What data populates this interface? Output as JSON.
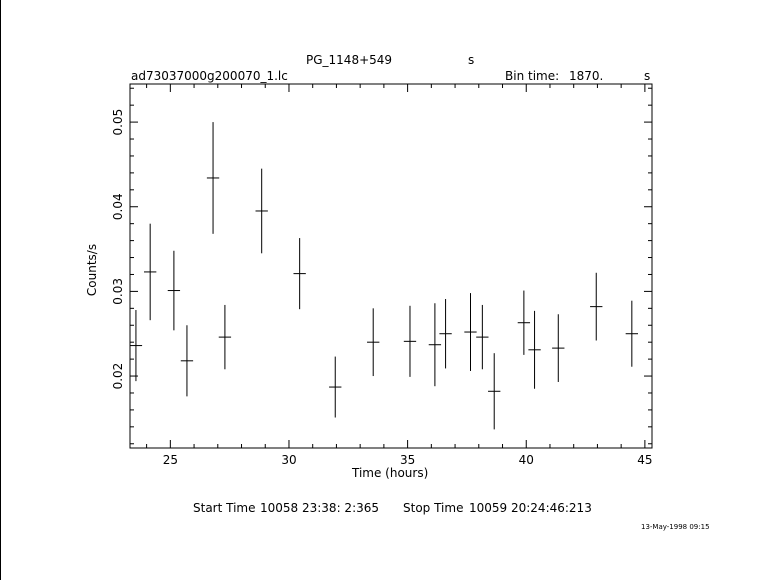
{
  "chart_data": {
    "type": "scatter",
    "title": "PG_1148+549",
    "title_suffix": "s",
    "filename": "ad73037000g200070_1.lc",
    "bin_time_label": "Bin time:",
    "bin_time_value": "1870.",
    "bin_time_unit": "s",
    "xlabel": "Time (hours)",
    "ylabel": "Counts/s",
    "xlim": [
      23.3,
      45.3
    ],
    "ylim": [
      0.0115,
      0.0545
    ],
    "x_ticks": [
      "25",
      "30",
      "35",
      "40",
      "45"
    ],
    "y_ticks": [
      "0.02",
      "0.03",
      "0.04",
      "0.05"
    ],
    "footer": {
      "start_label": "Start Time",
      "start_value": "10058 23:38: 2:365",
      "stop_label": "Stop Time",
      "stop_value": "10059 20:24:46:213"
    },
    "timestamp": "13-May-1998 09:15",
    "points": [
      {
        "x": 23.55,
        "y": 0.0236,
        "xerr": 0.26,
        "yerr": 0.0042
      },
      {
        "x": 24.15,
        "y": 0.0323,
        "xerr": 0.26,
        "yerr": 0.0057
      },
      {
        "x": 25.15,
        "y": 0.0301,
        "xerr": 0.26,
        "yerr": 0.0047
      },
      {
        "x": 25.7,
        "y": 0.0218,
        "xerr": 0.26,
        "yerr": 0.0042
      },
      {
        "x": 26.8,
        "y": 0.0434,
        "xerr": 0.26,
        "yerr": 0.0066
      },
      {
        "x": 27.3,
        "y": 0.0246,
        "xerr": 0.26,
        "yerr": 0.0038
      },
      {
        "x": 28.85,
        "y": 0.0395,
        "xerr": 0.26,
        "yerr": 0.005
      },
      {
        "x": 30.45,
        "y": 0.0321,
        "xerr": 0.26,
        "yerr": 0.0042
      },
      {
        "x": 31.95,
        "y": 0.0187,
        "xerr": 0.26,
        "yerr": 0.0036
      },
      {
        "x": 33.55,
        "y": 0.024,
        "xerr": 0.26,
        "yerr": 0.004
      },
      {
        "x": 35.1,
        "y": 0.0241,
        "xerr": 0.26,
        "yerr": 0.0042
      },
      {
        "x": 36.15,
        "y": 0.0237,
        "xerr": 0.26,
        "yerr": 0.0049
      },
      {
        "x": 36.6,
        "y": 0.025,
        "xerr": 0.26,
        "yerr": 0.0041
      },
      {
        "x": 37.65,
        "y": 0.0252,
        "xerr": 0.26,
        "yerr": 0.0046
      },
      {
        "x": 38.15,
        "y": 0.0246,
        "xerr": 0.26,
        "yerr": 0.0038
      },
      {
        "x": 38.65,
        "y": 0.0182,
        "xerr": 0.26,
        "yerr": 0.0045
      },
      {
        "x": 39.9,
        "y": 0.0263,
        "xerr": 0.26,
        "yerr": 0.0038
      },
      {
        "x": 40.35,
        "y": 0.0231,
        "xerr": 0.26,
        "yerr": 0.0046
      },
      {
        "x": 41.35,
        "y": 0.0233,
        "xerr": 0.26,
        "yerr": 0.004
      },
      {
        "x": 42.95,
        "y": 0.0282,
        "xerr": 0.26,
        "yerr": 0.004
      },
      {
        "x": 44.45,
        "y": 0.025,
        "xerr": 0.26,
        "yerr": 0.0039
      }
    ]
  }
}
